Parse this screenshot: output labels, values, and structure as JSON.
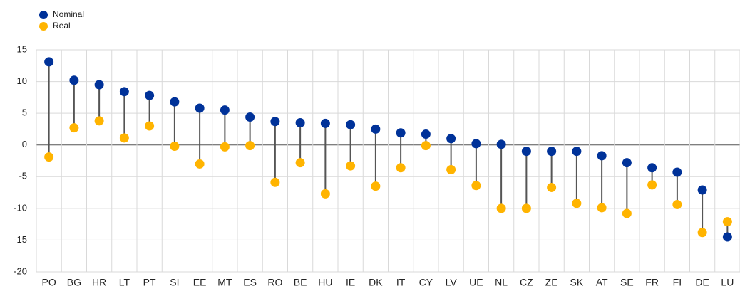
{
  "chart_data": {
    "type": "dumbbell",
    "categories": [
      "PO",
      "BG",
      "HR",
      "LT",
      "PT",
      "SI",
      "EE",
      "MT",
      "ES",
      "RO",
      "BE",
      "HU",
      "IE",
      "DK",
      "IT",
      "CY",
      "LV",
      "UE",
      "NL",
      "CZ",
      "ZE",
      "SK",
      "AT",
      "SE",
      "FR",
      "FI",
      "DE",
      "LU"
    ],
    "series": [
      {
        "name": "Nominal",
        "color": "#003299",
        "values": [
          13.1,
          10.2,
          9.5,
          8.4,
          7.8,
          6.8,
          5.8,
          5.5,
          4.4,
          3.7,
          3.5,
          3.4,
          3.2,
          2.5,
          1.9,
          1.7,
          1.0,
          0.2,
          0.1,
          -1.0,
          -1.0,
          -1.0,
          -1.7,
          -2.8,
          -3.6,
          -4.3,
          -7.1,
          -14.5
        ]
      },
      {
        "name": "Real",
        "color": "#ffb400",
        "values": [
          -1.9,
          2.7,
          3.8,
          1.1,
          3.0,
          -0.2,
          -3.0,
          -0.3,
          -0.1,
          -5.9,
          -2.8,
          -7.7,
          -3.3,
          -6.5,
          -3.6,
          -0.1,
          -3.9,
          -6.4,
          -10.0,
          -10.0,
          -6.7,
          -9.2,
          -9.9,
          -10.8,
          -6.3,
          -9.4,
          -13.8,
          -12.1
        ]
      }
    ],
    "ylim": [
      -20,
      15
    ],
    "yticks": [
      -20,
      -15,
      -10,
      -5,
      0,
      5,
      10,
      15
    ],
    "grid": true,
    "legend": "top-left"
  }
}
